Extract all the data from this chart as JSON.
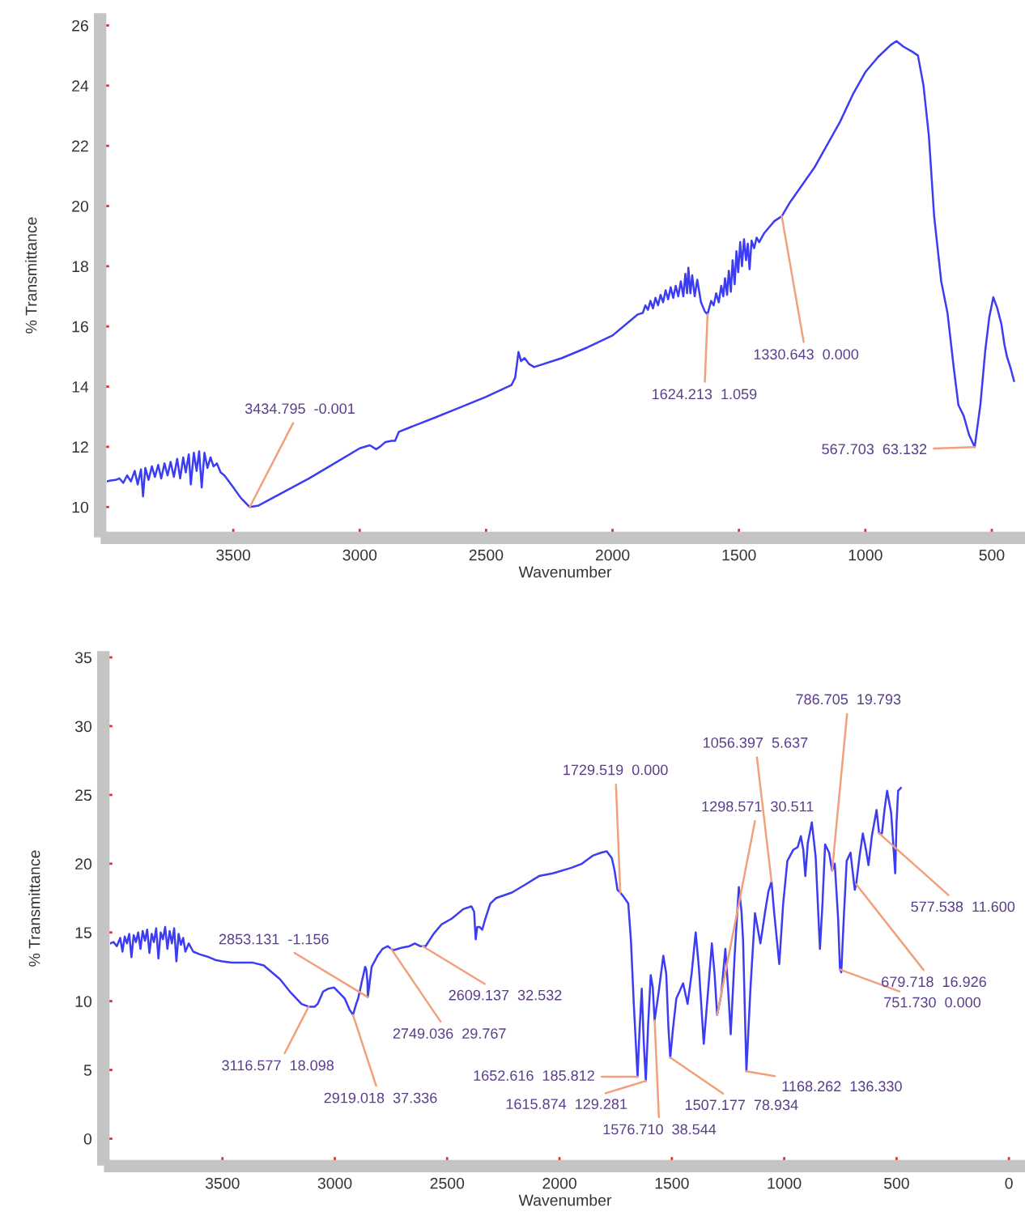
{
  "chart_data": [
    {
      "type": "line",
      "xlabel": "Wavenumber",
      "ylabel": "% Transmittance",
      "x": [
        4000,
        3985,
        3965,
        3950,
        3935,
        3920,
        3905,
        3890,
        3878,
        3865,
        3857,
        3848,
        3835,
        3822,
        3810,
        3797,
        3785,
        3772,
        3760,
        3748,
        3735,
        3722,
        3710,
        3698,
        3688,
        3676,
        3668,
        3656,
        3645,
        3635,
        3625,
        3614,
        3602,
        3590,
        3578,
        3565,
        3550,
        3535,
        3500,
        3470,
        3434.795,
        3400,
        3300,
        3200,
        3100,
        3000,
        2960,
        2935,
        2920,
        2900,
        2875,
        2860,
        2845,
        2800,
        2700,
        2600,
        2500,
        2400,
        2385,
        2372,
        2362,
        2348,
        2330,
        2310,
        2200,
        2100,
        2000,
        1900,
        1880,
        1870,
        1860,
        1850,
        1840,
        1830,
        1820,
        1810,
        1800,
        1790,
        1780,
        1770,
        1760,
        1750,
        1740,
        1730,
        1720,
        1712,
        1705,
        1700,
        1692,
        1685,
        1675,
        1665,
        1650,
        1635,
        1624.213,
        1610,
        1600,
        1590,
        1580,
        1570,
        1562,
        1555,
        1547,
        1540,
        1532,
        1525,
        1517,
        1510,
        1503,
        1495,
        1488,
        1480,
        1472,
        1465,
        1458,
        1450,
        1440,
        1430,
        1420,
        1400,
        1380,
        1360,
        1330.643,
        1300,
        1200,
        1100,
        1050,
        1000,
        950,
        900,
        877,
        850,
        813,
        792,
        770,
        749,
        728,
        700,
        675,
        650,
        632,
        611,
        590,
        567.703,
        545,
        526,
        510,
        494,
        478,
        462,
        450,
        440,
        425,
        412
      ],
      "series": [
        {
          "color": "#3c3cf2",
          "values": [
            10.85,
            10.88,
            10.9,
            10.95,
            10.8,
            11.05,
            10.85,
            11.2,
            10.75,
            11.25,
            10.35,
            11.3,
            10.9,
            11.35,
            11.0,
            11.4,
            10.95,
            11.45,
            11.05,
            11.5,
            11.0,
            11.6,
            10.95,
            11.65,
            11.15,
            11.75,
            10.75,
            11.8,
            11.2,
            11.85,
            10.65,
            11.8,
            11.3,
            11.65,
            11.35,
            11.45,
            11.15,
            11.05,
            10.65,
            10.3,
            10.0,
            10.05,
            10.5,
            10.95,
            11.45,
            11.95,
            12.05,
            11.92,
            12.0,
            12.15,
            12.2,
            12.2,
            12.5,
            12.65,
            12.98,
            13.32,
            13.66,
            14.05,
            14.3,
            15.15,
            14.85,
            14.95,
            14.75,
            14.65,
            14.95,
            15.3,
            15.7,
            16.4,
            16.45,
            16.7,
            16.55,
            16.85,
            16.6,
            16.95,
            16.7,
            17.05,
            16.8,
            17.2,
            16.9,
            17.3,
            16.95,
            17.35,
            17.0,
            17.5,
            17.0,
            17.75,
            17.1,
            17.95,
            17.1,
            17.7,
            17.0,
            17.55,
            16.8,
            16.5,
            16.4,
            16.85,
            16.7,
            17.1,
            16.8,
            17.35,
            17.0,
            17.6,
            17.05,
            17.85,
            17.15,
            18.2,
            17.4,
            18.5,
            17.8,
            18.8,
            18.0,
            18.9,
            18.2,
            18.75,
            17.9,
            18.85,
            18.6,
            18.95,
            18.8,
            19.1,
            19.3,
            19.5,
            19.66,
            20.1,
            21.3,
            22.8,
            23.7,
            24.45,
            24.95,
            25.35,
            25.48,
            25.3,
            25.12,
            25.0,
            24.0,
            22.35,
            19.67,
            17.5,
            16.44,
            14.6,
            13.39,
            13.03,
            12.4,
            11.99,
            13.4,
            15.18,
            16.3,
            16.97,
            16.6,
            16.08,
            15.4,
            15.0,
            14.6,
            14.19
          ]
        }
      ],
      "xlim": [
        4000,
        375
      ],
      "ylim": [
        9.2,
        26.2
      ],
      "xticks": [
        {
          "value": 4000,
          "label": null
        },
        {
          "value": 3900,
          "label": null
        },
        {
          "value": 3800,
          "label": null
        },
        {
          "value": 3700,
          "label": null
        },
        {
          "value": 3600,
          "label": null
        },
        3500,
        {
          "value": 3400,
          "label": null
        },
        {
          "value": 3300,
          "label": null
        },
        {
          "value": 3200,
          "label": null
        },
        {
          "value": 3100,
          "label": null
        },
        3000,
        {
          "value": 2900,
          "label": null
        },
        {
          "value": 2800,
          "label": null
        },
        {
          "value": 2700,
          "label": null
        },
        {
          "value": 2600,
          "label": null
        },
        2500,
        {
          "value": 2400,
          "label": null
        },
        {
          "value": 2300,
          "label": null
        },
        {
          "value": 2200,
          "label": null
        },
        {
          "value": 2100,
          "label": null
        },
        2000,
        {
          "value": 1900,
          "label": null
        },
        {
          "value": 1800,
          "label": null
        },
        {
          "value": 1700,
          "label": null
        },
        {
          "value": 1600,
          "label": null
        },
        1500,
        {
          "value": 1400,
          "label": null
        },
        {
          "value": 1300,
          "label": null
        },
        {
          "value": 1200,
          "label": null
        },
        {
          "value": 1100,
          "label": null
        },
        1000,
        {
          "value": 900,
          "label": null
        },
        {
          "value": 800,
          "label": null
        },
        {
          "value": 700,
          "label": null
        },
        {
          "value": 600,
          "label": null
        },
        500,
        {
          "value": 400,
          "label": null
        }
      ],
      "yticks": [
        10,
        12,
        14,
        16,
        18,
        20,
        22,
        24,
        26
      ],
      "annotations": [
        {
          "text": "3434.795  -0.001",
          "x": 3434.795,
          "y": 10.0
        },
        {
          "text": "1624.213  1.059",
          "x": 1624.213,
          "y": 16.4
        },
        {
          "text": "1330.643  0.000",
          "x": 1330.643,
          "y": 19.66
        },
        {
          "text": "567.703  63.132",
          "x": 567.703,
          "y": 11.99
        }
      ]
    },
    {
      "type": "line",
      "xlabel": "Wavenumber",
      "ylabel": "% Transmittance",
      "x": [
        4000,
        3985,
        3970,
        3955,
        3945,
        3935,
        3925,
        3915,
        3905,
        3895,
        3885,
        3875,
        3865,
        3855,
        3845,
        3835,
        3825,
        3815,
        3805,
        3795,
        3785,
        3775,
        3765,
        3755,
        3745,
        3735,
        3725,
        3715,
        3705,
        3695,
        3685,
        3675,
        3665,
        3650,
        3630,
        3600,
        3560,
        3532,
        3500,
        3460,
        3400,
        3364,
        3316,
        3280,
        3244,
        3200,
        3148,
        3116.577,
        3090,
        3076,
        3052,
        3030,
        3004,
        2980,
        2956,
        2935,
        2919.018,
        2905,
        2896,
        2880,
        2865,
        2860,
        2855,
        2853.131,
        2846,
        2836,
        2810,
        2788,
        2764,
        2749.036,
        2740,
        2700,
        2668,
        2644,
        2620,
        2609.137,
        2596,
        2560,
        2524,
        2480,
        2428,
        2392,
        2380,
        2373,
        2366,
        2356,
        2344,
        2330,
        2308,
        2282,
        2212,
        2150,
        2091,
        2030,
        1947,
        1900,
        1850,
        1815,
        1790,
        1767,
        1755,
        1742,
        1729.519,
        1715,
        1694,
        1682,
        1670,
        1652.616,
        1645,
        1634,
        1625,
        1615.874,
        1605,
        1594,
        1585,
        1576.71,
        1560,
        1538,
        1525,
        1515,
        1507.177,
        1495,
        1480,
        1466,
        1450,
        1430,
        1412,
        1394,
        1380,
        1358,
        1340,
        1322,
        1310,
        1298.571,
        1280,
        1262,
        1250,
        1238,
        1220,
        1202,
        1190,
        1183,
        1168.262,
        1150,
        1130,
        1106,
        1085,
        1070,
        1056.397,
        1045,
        1022,
        1005,
        986,
        960,
        940,
        926,
        915,
        906,
        895,
        877,
        860,
        841,
        830,
        818,
        800,
        786.705,
        775,
        760,
        751.73,
        746,
        735,
        722,
        705,
        686,
        679.718,
        665,
        650,
        636,
        625,
        610,
        589,
        577.538,
        565,
        553,
        542,
        524,
        506,
        500,
        493,
        481
      ],
      "series": [
        {
          "color": "#3c3cf2",
          "values": [
            14.2,
            14.3,
            14.0,
            14.6,
            13.6,
            14.7,
            14.2,
            14.9,
            13.2,
            14.8,
            14.3,
            15.0,
            13.8,
            15.1,
            14.4,
            15.2,
            13.5,
            14.9,
            14.3,
            15.3,
            13.1,
            15.0,
            14.5,
            15.4,
            13.8,
            15.1,
            14.2,
            15.3,
            12.9,
            14.9,
            14.1,
            14.6,
            13.6,
            14.2,
            13.6,
            13.4,
            13.2,
            13.0,
            12.9,
            12.8,
            12.8,
            12.8,
            12.6,
            12.1,
            11.6,
            10.7,
            9.8,
            9.6,
            9.6,
            9.8,
            10.7,
            10.9,
            11.0,
            10.6,
            10.2,
            9.4,
            9.0,
            9.8,
            10.2,
            11.4,
            12.5,
            12.3,
            11.5,
            10.3,
            11.2,
            12.5,
            13.3,
            13.8,
            14.0,
            13.8,
            13.7,
            13.9,
            14.0,
            14.2,
            14.0,
            14.0,
            14.0,
            14.9,
            15.6,
            16.0,
            16.7,
            16.9,
            16.5,
            14.5,
            15.4,
            15.4,
            15.2,
            16.0,
            17.1,
            17.5,
            17.9,
            18.5,
            19.1,
            19.3,
            19.7,
            20.0,
            20.6,
            20.8,
            20.9,
            20.4,
            19.5,
            18.1,
            17.9,
            17.6,
            17.1,
            14.4,
            10.0,
            4.5,
            7.5,
            10.9,
            7.0,
            4.2,
            8.5,
            11.9,
            11.0,
            8.6,
            10.5,
            13.3,
            12.0,
            8.0,
            5.9,
            8.0,
            10.2,
            10.7,
            11.3,
            9.8,
            12.0,
            15.0,
            12.5,
            6.9,
            10.5,
            14.2,
            12.0,
            9.0,
            10.5,
            13.8,
            11.0,
            7.6,
            13.5,
            18.3,
            16.5,
            14.4,
            4.9,
            11.0,
            16.4,
            14.2,
            16.5,
            18.0,
            18.7,
            16.5,
            12.7,
            17.0,
            20.2,
            21.0,
            21.2,
            22.0,
            21.0,
            19.1,
            21.5,
            23.0,
            20.5,
            13.8,
            17.0,
            21.4,
            20.8,
            19.5,
            20.0,
            16.0,
            12.3,
            12.1,
            16.0,
            20.2,
            20.8,
            18.1,
            18.5,
            20.5,
            22.2,
            21.0,
            19.9,
            22.0,
            23.9,
            22.2,
            22.2,
            24.0,
            25.3,
            23.7,
            19.3,
            23.0,
            25.3,
            25.5
          ]
        }
      ],
      "xlim": [
        4000,
        -50
      ],
      "ylim": [
        -1.5,
        35
      ],
      "xticks": [
        {
          "value": 4000,
          "label": null
        },
        {
          "value": 3900,
          "label": null
        },
        {
          "value": 3800,
          "label": null
        },
        {
          "value": 3700,
          "label": null
        },
        {
          "value": 3600,
          "label": null
        },
        3500,
        {
          "value": 3400,
          "label": null
        },
        {
          "value": 3300,
          "label": null
        },
        {
          "value": 3200,
          "label": null
        },
        {
          "value": 3100,
          "label": null
        },
        3000,
        {
          "value": 2900,
          "label": null
        },
        {
          "value": 2800,
          "label": null
        },
        {
          "value": 2700,
          "label": null
        },
        {
          "value": 2600,
          "label": null
        },
        2500,
        {
          "value": 2400,
          "label": null
        },
        {
          "value": 2300,
          "label": null
        },
        {
          "value": 2200,
          "label": null
        },
        {
          "value": 2100,
          "label": null
        },
        2000,
        {
          "value": 1900,
          "label": null
        },
        {
          "value": 1800,
          "label": null
        },
        {
          "value": 1700,
          "label": null
        },
        {
          "value": 1600,
          "label": null
        },
        1500,
        {
          "value": 1400,
          "label": null
        },
        {
          "value": 1300,
          "label": null
        },
        {
          "value": 1200,
          "label": null
        },
        {
          "value": 1100,
          "label": null
        },
        1000,
        {
          "value": 900,
          "label": null
        },
        {
          "value": 800,
          "label": null
        },
        {
          "value": 700,
          "label": null
        },
        {
          "value": 600,
          "label": null
        },
        500,
        {
          "value": 400,
          "label": null
        },
        {
          "value": 300,
          "label": null
        },
        {
          "value": 200,
          "label": null
        },
        {
          "value": 100,
          "label": null
        },
        0
      ],
      "yticks": [
        0,
        5,
        10,
        15,
        20,
        25,
        30,
        35
      ],
      "annotations": [
        {
          "text": "3116.577  18.098",
          "x": 3116.577,
          "y": 9.6
        },
        {
          "text": "2919.018  37.336",
          "x": 2919.018,
          "y": 9.0
        },
        {
          "text": "2853.131  -1.156",
          "x": 2853.131,
          "y": 10.3
        },
        {
          "text": "2749.036  29.767",
          "x": 2749.036,
          "y": 13.8
        },
        {
          "text": "2609.137  32.532",
          "x": 2609.137,
          "y": 14.0
        },
        {
          "text": "1729.519  0.000",
          "x": 1729.519,
          "y": 17.9
        },
        {
          "text": "1652.616  185.812",
          "x": 1652.616,
          "y": 4.5
        },
        {
          "text": "1615.874  129.281",
          "x": 1615.874,
          "y": 4.2
        },
        {
          "text": "1576.710  38.544",
          "x": 1576.71,
          "y": 8.6
        },
        {
          "text": "1507.177  78.934",
          "x": 1507.177,
          "y": 5.9
        },
        {
          "text": "1298.571  30.511",
          "x": 1298.571,
          "y": 9.0
        },
        {
          "text": "1056.397  5.637",
          "x": 1056.397,
          "y": 18.7
        },
        {
          "text": "1168.262  136.330",
          "x": 1168.262,
          "y": 4.9
        },
        {
          "text": "786.705  19.793",
          "x": 786.705,
          "y": 19.5
        },
        {
          "text": "751.730  0.000",
          "x": 751.73,
          "y": 12.3
        },
        {
          "text": "679.718  16.926",
          "x": 679.718,
          "y": 18.5
        },
        {
          "text": "577.538  11.600",
          "x": 577.538,
          "y": 22.2
        }
      ]
    }
  ]
}
